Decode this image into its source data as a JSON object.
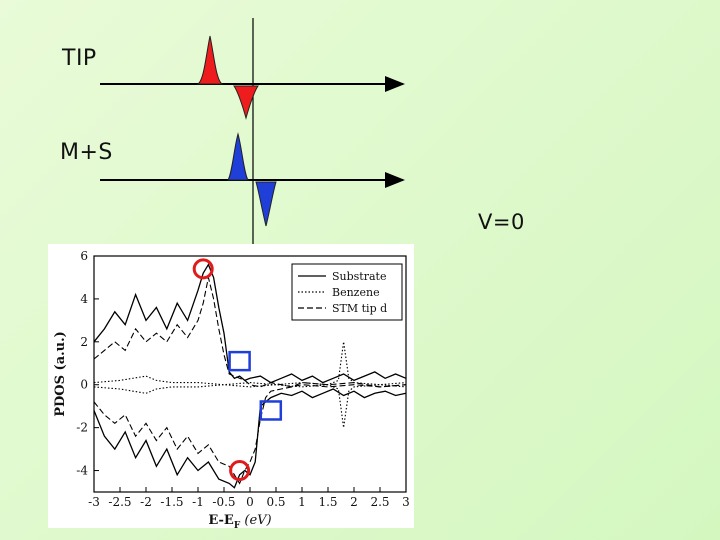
{
  "labels": {
    "tip": "TIP",
    "ms": "M+S",
    "voltage": "V=0"
  },
  "colors": {
    "tip_peak": "#ee1c1c",
    "ms_peak": "#1f3fd8",
    "marker_circle": "#e11a1a",
    "marker_square": "#1f3fd8"
  },
  "chart_data": {
    "type": "line",
    "ylabel": "PDOS (a.u.)",
    "xlabel_main": "E-E",
    "xlabel_sub": "F",
    "xlabel_unit": "(eV)",
    "xlim": [
      -3,
      3
    ],
    "ylim": [
      -5,
      6
    ],
    "x_ticks": [
      "-3",
      "-2.5",
      "-2",
      "-1.5",
      "-1",
      "-0.5",
      "0",
      "0.5",
      "1",
      "1.5",
      "2",
      "2.5",
      "3"
    ],
    "y_ticks": [
      "6",
      "4",
      "2",
      "0",
      "-2",
      "-4"
    ],
    "legend": [
      {
        "name": "Substrate",
        "style": "solid"
      },
      {
        "name": "Benzene",
        "style": "dotted"
      },
      {
        "name": "STM tip d",
        "style": "dashed"
      }
    ],
    "series": [
      {
        "name": "Substrate",
        "style": "solid",
        "x": [
          -3,
          -2.8,
          -2.6,
          -2.4,
          -2.2,
          -2,
          -1.8,
          -1.6,
          -1.4,
          -1.2,
          -1,
          -0.9,
          -0.8,
          -0.7,
          -0.6,
          -0.5,
          -0.4,
          -0.3,
          -0.2,
          -0.1,
          0,
          0.2,
          0.4,
          0.6,
          0.8,
          1,
          1.2,
          1.4,
          1.6,
          1.8,
          2,
          2.2,
          2.4,
          2.6,
          2.8,
          3
        ],
        "y": [
          2.0,
          2.6,
          3.4,
          2.8,
          4.2,
          3.0,
          3.6,
          2.6,
          3.8,
          3.0,
          4.4,
          5.2,
          5.6,
          5.0,
          3.6,
          2.4,
          0.6,
          0.3,
          0.4,
          0.2,
          0.3,
          0.4,
          0.1,
          0.3,
          0.5,
          0.2,
          0.4,
          0.1,
          0.3,
          0.5,
          0.2,
          0.4,
          0.6,
          0.3,
          0.5,
          0.3
        ]
      },
      {
        "name": "Substrate (minority)",
        "style": "solid",
        "x": [
          -3,
          -2.8,
          -2.6,
          -2.4,
          -2.2,
          -2,
          -1.8,
          -1.6,
          -1.4,
          -1.2,
          -1,
          -0.8,
          -0.6,
          -0.4,
          -0.3,
          -0.2,
          -0.1,
          0,
          0.1,
          0.2,
          0.4,
          0.6,
          0.8,
          1,
          1.2,
          1.4,
          1.6,
          1.8,
          2,
          2.2,
          2.4,
          2.6,
          2.8,
          3
        ],
        "y": [
          -1.2,
          -2.4,
          -3.0,
          -2.2,
          -3.4,
          -2.6,
          -3.8,
          -3.0,
          -4.2,
          -3.4,
          -4.0,
          -3.6,
          -4.4,
          -4.6,
          -4.8,
          -4.2,
          -4.0,
          -4.2,
          -3.6,
          -1.0,
          -0.6,
          -0.4,
          -0.5,
          -0.3,
          -0.6,
          -0.4,
          -0.2,
          -0.5,
          -0.3,
          -0.6,
          -0.4,
          -0.3,
          -0.5,
          -0.4
        ]
      },
      {
        "name": "Benzene",
        "style": "dotted",
        "x": [
          -3,
          -2.5,
          -2,
          -1.8,
          -1.5,
          -1,
          -0.5,
          0,
          0.5,
          1,
          1.5,
          1.7,
          1.8,
          1.9,
          2,
          2.5,
          3
        ],
        "y": [
          0.1,
          0.2,
          0.4,
          0.2,
          0.1,
          0.1,
          0.0,
          0.1,
          0.0,
          0.1,
          0.0,
          0.2,
          2.0,
          0.3,
          0.1,
          0.0,
          0.1
        ]
      },
      {
        "name": "Benzene (minority)",
        "style": "dotted",
        "x": [
          -3,
          -2.5,
          -2,
          -1.8,
          -1.5,
          -1,
          -0.5,
          0,
          0.5,
          1,
          1.5,
          1.7,
          1.8,
          1.9,
          2,
          2.5,
          3
        ],
        "y": [
          -0.1,
          -0.2,
          -0.4,
          -0.2,
          -0.1,
          -0.1,
          0.0,
          -0.1,
          0.0,
          -0.1,
          0.0,
          -0.2,
          -2.0,
          -0.3,
          -0.1,
          0.0,
          -0.1
        ]
      },
      {
        "name": "STM tip d",
        "style": "dashed",
        "x": [
          -3,
          -2.8,
          -2.6,
          -2.4,
          -2.2,
          -2,
          -1.8,
          -1.6,
          -1.4,
          -1.2,
          -1,
          -0.9,
          -0.8,
          -0.7,
          -0.6,
          -0.5,
          -0.4,
          -0.3,
          -0.2,
          -0.1,
          0,
          0.2,
          0.4,
          0.6,
          0.8,
          1,
          1.5,
          2,
          2.5,
          3
        ],
        "y": [
          1.2,
          1.6,
          2.0,
          1.6,
          2.6,
          2.0,
          2.4,
          2.0,
          2.8,
          2.2,
          3.0,
          3.8,
          5.0,
          4.0,
          2.6,
          1.4,
          0.5,
          0.4,
          0.3,
          0.2,
          0.0,
          -0.1,
          0.1,
          0.0,
          -0.1,
          0.1,
          0.0,
          0.1,
          -0.1,
          0.0
        ]
      },
      {
        "name": "STM tip d (minority)",
        "style": "dashed",
        "x": [
          -3,
          -2.8,
          -2.6,
          -2.4,
          -2.2,
          -2,
          -1.8,
          -1.6,
          -1.4,
          -1.2,
          -1,
          -0.8,
          -0.6,
          -0.4,
          -0.3,
          -0.2,
          -0.1,
          0,
          0.1,
          0.2,
          0.3,
          0.4,
          0.6,
          0.8,
          1,
          1.5,
          2,
          2.5,
          3
        ],
        "y": [
          -0.8,
          -1.4,
          -1.8,
          -1.4,
          -2.4,
          -1.8,
          -2.6,
          -2.0,
          -3.0,
          -2.4,
          -3.2,
          -2.8,
          -3.6,
          -3.8,
          -4.2,
          -4.6,
          -4.0,
          -3.6,
          -3.0,
          -1.6,
          -0.6,
          -0.3,
          -0.2,
          -0.1,
          0.0,
          -0.1,
          0.0,
          -0.1,
          0.0
        ]
      }
    ],
    "markers": [
      {
        "shape": "circle",
        "x": -0.9,
        "y": 5.4
      },
      {
        "shape": "square",
        "x": -0.2,
        "y": 1.1
      },
      {
        "shape": "square",
        "x": 0.4,
        "y": -1.2
      },
      {
        "shape": "circle",
        "x": -0.2,
        "y": -4.0
      }
    ]
  }
}
